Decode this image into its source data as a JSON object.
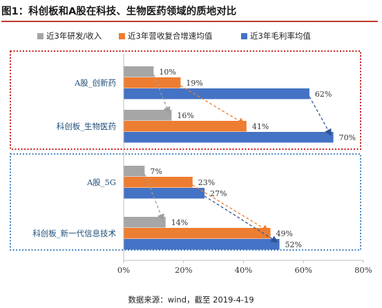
{
  "figure": {
    "title": "图1：科创板和A股在科技、生物医药领域的质地对比",
    "source": "数据来源：wind，截至 2019-4-19"
  },
  "colors": {
    "rd": "#a6a6a6",
    "growth": "#ed7d31",
    "margin": "#4472c4",
    "box_top": "#c00000",
    "box_bottom": "#2e75b6"
  },
  "chart_data": {
    "type": "bar",
    "orientation": "horizontal",
    "categories": [
      "A股_创新药",
      "科创板_生物医药",
      "A股_5G",
      "科创板_新一代信息技术"
    ],
    "series": [
      {
        "name": "近3年研发/收入",
        "values": [
          10,
          16,
          7,
          14
        ],
        "labels": [
          "10%",
          "16%",
          "7%",
          "14%"
        ]
      },
      {
        "name": "近3年营收复合增速均值",
        "values": [
          19,
          41,
          23,
          49
        ],
        "labels": [
          "19%",
          "41%",
          "23%",
          "49%"
        ]
      },
      {
        "name": "近3年毛利率均值",
        "values": [
          62,
          70,
          27,
          52
        ],
        "labels": [
          "62%",
          "70%",
          "27%",
          "52%"
        ]
      }
    ],
    "xlim": [
      0,
      80
    ],
    "xticks": [
      "0%",
      "20%",
      "40%",
      "60%",
      "80%"
    ],
    "legend": "top",
    "grid": false,
    "groups": [
      {
        "categories": [
          "A股_创新药",
          "科创板_生物医药"
        ],
        "box": "dotted-red"
      },
      {
        "categories": [
          "A股_5G",
          "科创板_新一代信息技术"
        ],
        "box": "dotted-blue"
      }
    ],
    "arrows": "dashed arrows from each A股 bar end to the matching 科创板 bar end"
  }
}
